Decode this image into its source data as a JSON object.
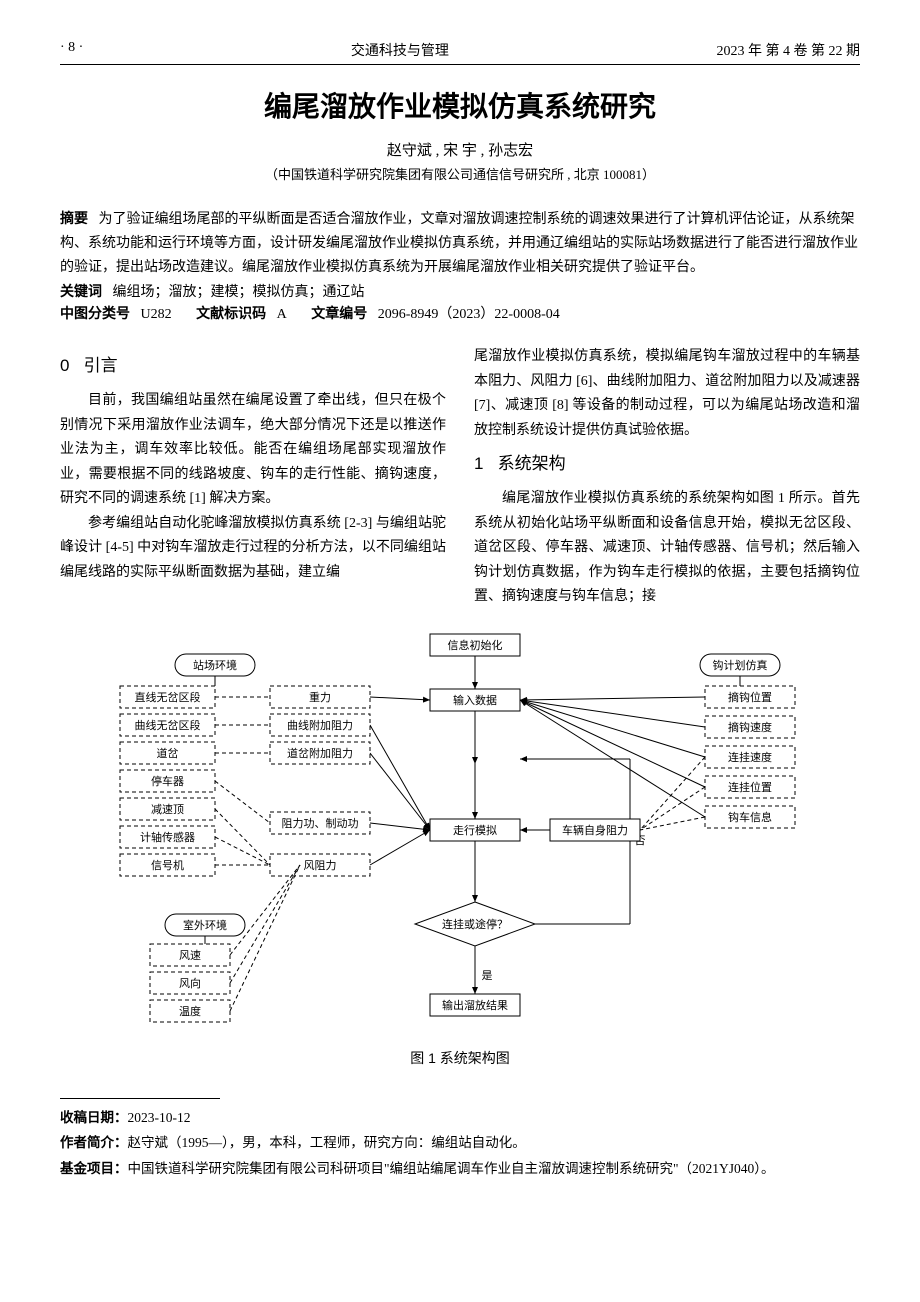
{
  "header": {
    "page_no": "· 8 ·",
    "journal": "交通科技与管理",
    "issue": "2023 年   第 4 卷   第 22 期"
  },
  "title": "编尾溜放作业模拟仿真系统研究",
  "authors": "赵守斌 , 宋   宇 , 孙志宏",
  "affiliation": "（中国铁道科学研究院集团有限公司通信信号研究所 , 北京 100081）",
  "abstract": {
    "label": "摘要",
    "text": "为了验证编组场尾部的平纵断面是否适合溜放作业，文章对溜放调速控制系统的调速效果进行了计算机评估论证，从系统架构、系统功能和运行环境等方面，设计研发编尾溜放作业模拟仿真系统，并用通辽编组站的实际站场数据进行了能否进行溜放作业的验证，提出站场改造建议。编尾溜放作业模拟仿真系统为开展编尾溜放作业相关研究提供了验证平台。"
  },
  "keywords": {
    "label": "关键词",
    "text": "编组场；溜放；建模；模拟仿真；通辽站"
  },
  "clc": {
    "label": "中图分类号",
    "value": "U282"
  },
  "doccode": {
    "label": "文献标识码",
    "value": "A"
  },
  "articleno": {
    "label": "文章编号",
    "value": "2096-8949（2023）22-0008-04"
  },
  "sections": {
    "s0": {
      "num": "0",
      "title": "引言"
    },
    "s1": {
      "num": "1",
      "title": "系统架构"
    }
  },
  "paras": {
    "p1": "目前，我国编组站虽然在编尾设置了牵出线，但只在极个别情况下采用溜放作业法调车，绝大部分情况下还是以推送作业法为主，调车效率比较低。能否在编组场尾部实现溜放作业，需要根据不同的线路坡度、钩车的走行性能、摘钩速度，研究不同的调速系统 [1] 解决方案。",
    "p2": "参考编组站自动化驼峰溜放模拟仿真系统 [2-3] 与编组站驼峰设计 [4-5] 中对钩车溜放走行过程的分析方法，以不同编组站编尾线路的实际平纵断面数据为基础，建立编",
    "p3": "尾溜放作业模拟仿真系统，模拟编尾钩车溜放过程中的车辆基本阻力、风阻力 [6]、曲线附加阻力、道岔附加阻力以及减速器 [7]、减速顶 [8] 等设备的制动过程，可以为编尾站场改造和溜放控制系统设计提供仿真试验依据。",
    "p4": "编尾溜放作业模拟仿真系统的系统架构如图 1 所示。首先系统从初始化站场平纵断面和设备信息开始，模拟无岔区段、道岔区段、停车器、减速顶、计轴传感器、信号机；然后输入钩计划仿真数据，作为钩车走行模拟的依据，主要包括摘钩位置、摘钩速度与钩车信息；接"
  },
  "figure": {
    "caption": "图 1   系统架构图",
    "nodes": {
      "info_init": "信息初始化",
      "input_data": "输入数据",
      "run_sim": "走行模拟",
      "decision": "连挂或途停？",
      "output": "输出溜放结果",
      "yard_env": "站场环境",
      "outdoor_env": "室外环境",
      "plan_sim": "钩计划仿真",
      "self_resist": "车辆自身阻力",
      "yes": "是",
      "no": "否"
    },
    "left_items": [
      "直线无岔区段",
      "曲线无岔区段",
      "道岔",
      "停车器",
      "减速顶",
      "计轴传感器",
      "信号机"
    ],
    "mid_items": [
      "重力",
      "曲线附加阻力",
      "道岔附加阻力",
      "阻力功、制动功",
      "风阻力"
    ],
    "right_items": [
      "摘钩位置",
      "摘钩速度",
      "连挂速度",
      "连挂位置",
      "钩车信息"
    ],
    "env_items": [
      "风速",
      "风向",
      "温度"
    ],
    "colors": {
      "box_stroke": "#000000",
      "box_fill": "#ffffff",
      "dash": "4 3",
      "text": "#000000",
      "arrow": "#000000"
    },
    "font_size_small": 11,
    "font_size_node": 12
  },
  "footnotes": {
    "date": {
      "label": "收稿日期：",
      "text": "2023-10-12"
    },
    "author": {
      "label": "作者简介：",
      "text": "赵守斌（1995—），男，本科，工程师，研究方向：编组站自动化。"
    },
    "fund": {
      "label": "基金项目：",
      "text": "中国铁道科学研究院集团有限公司科研项目\"编组站编尾调车作业自主溜放调速控制系统研究\"（2021YJ040）。"
    }
  }
}
